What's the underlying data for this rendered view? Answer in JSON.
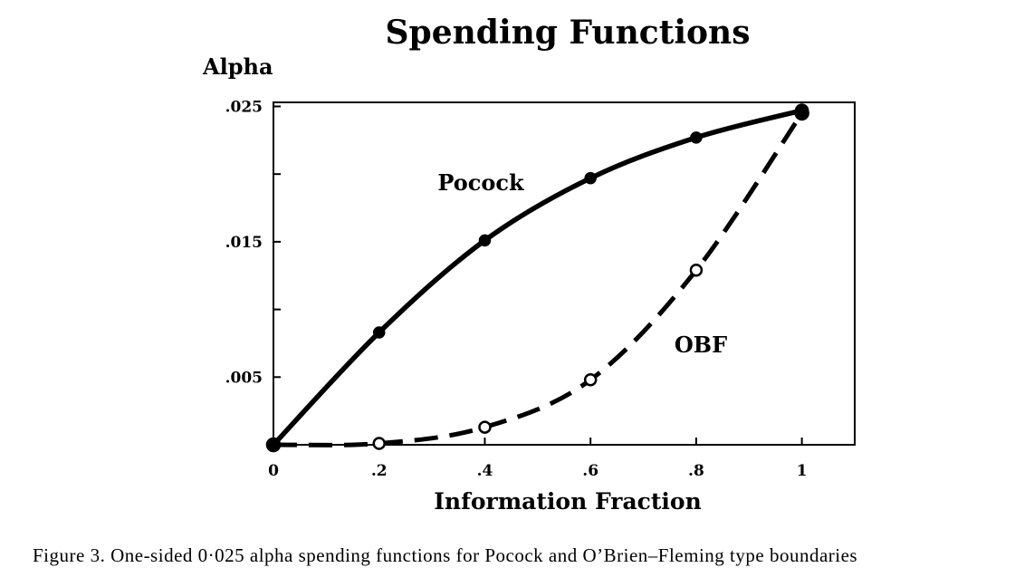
{
  "chart_data": {
    "type": "line",
    "title": "Spending Functions",
    "ylabel": "Alpha",
    "xlabel": "Information Fraction",
    "xlim": [
      0,
      1.1
    ],
    "ylim": [
      0,
      0.0253
    ],
    "x_ticks": [
      0,
      0.2,
      0.4,
      0.6,
      0.8,
      1
    ],
    "x_tick_labels": [
      "0",
      ".2",
      ".4",
      ".6",
      ".8",
      "1"
    ],
    "y_ticks": [
      0.005,
      0.01,
      0.015,
      0.02,
      0.025
    ],
    "y_tick_labels": [
      ".005",
      "",
      ".015",
      "",
      ".025"
    ],
    "grid": false,
    "series": [
      {
        "name": "Pocock",
        "line_style": "solid",
        "marker": "filled-circle",
        "color": "#000000",
        "x": [
          0,
          0.2,
          0.4,
          0.6,
          0.8,
          1.0
        ],
        "y": [
          0,
          0.0083,
          0.0151,
          0.0197,
          0.0227,
          0.0247
        ]
      },
      {
        "name": "OBF",
        "line_style": "dashed",
        "marker": "open-circle",
        "color": "#000000",
        "x": [
          0,
          0.2,
          0.4,
          0.6,
          0.8,
          1.0
        ],
        "y": [
          0,
          0.0001,
          0.0013,
          0.0048,
          0.0129,
          0.0245
        ]
      }
    ]
  },
  "caption": "Figure 3.  One-sided 0·025 alpha spending functions for Pocock and O’Brien–Fleming type boundaries"
}
